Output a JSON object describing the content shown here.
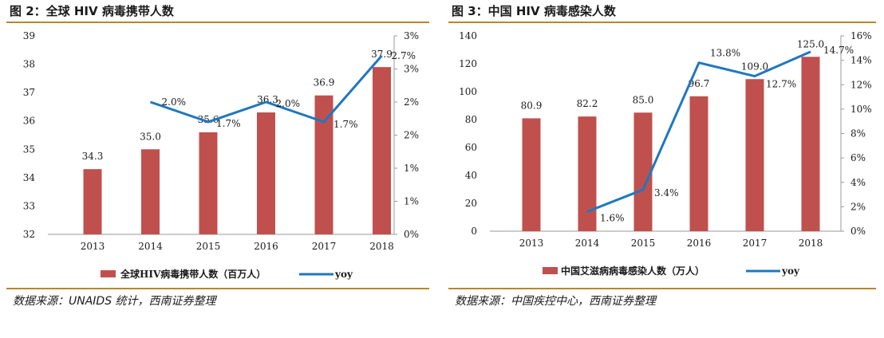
{
  "left_panel": {
    "title": "图 2：全球 HIV 病毒携带人数",
    "source": "数据来源：UNAIDS 统计，西南证券整理"
  },
  "right_panel": {
    "title": "图 3：中国 HIV 病毒感染人数",
    "source": "数据来源：中国疾控中心，西南证券整理"
  },
  "colors": {
    "bar": "#c0504d",
    "line": "#1f77c0",
    "rule": "#b8862e"
  },
  "chart_data": [
    {
      "type": "bar",
      "categories": [
        "2013",
        "2014",
        "2015",
        "2016",
        "2017",
        "2018"
      ],
      "series": [
        {
          "name": "全球HIV病毒携带人数（百万人）",
          "type": "bar",
          "axis": "left",
          "values": [
            34.3,
            35.0,
            35.6,
            36.3,
            36.9,
            37.9
          ],
          "labels": [
            "34.3",
            "35.0",
            "35.6",
            "36.3",
            "36.9",
            "37.9"
          ]
        },
        {
          "name": "yoy",
          "type": "line",
          "axis": "right",
          "values": [
            null,
            2.0,
            1.7,
            2.0,
            1.7,
            2.7
          ],
          "labels": [
            "",
            "2.0%",
            "1.7%",
            "2.0%",
            "1.7%",
            "2.7%"
          ]
        }
      ],
      "ylim_left": [
        32,
        39
      ],
      "yticks_left": [
        "32",
        "33",
        "34",
        "35",
        "36",
        "37",
        "38",
        "39"
      ],
      "ylim_right": [
        0,
        3
      ],
      "yticks_right": [
        "0%",
        "1%",
        "1%",
        "2%",
        "2%",
        "3%",
        "3%"
      ],
      "legend_position": "bottom"
    },
    {
      "type": "bar",
      "categories": [
        "2013",
        "2014",
        "2015",
        "2016",
        "2017",
        "2018"
      ],
      "series": [
        {
          "name": "中国艾滋病病毒感染人数（万人）",
          "type": "bar",
          "axis": "left",
          "values": [
            80.9,
            82.2,
            85.0,
            96.7,
            109.0,
            125.0
          ],
          "labels": [
            "80.9",
            "82.2",
            "85.0",
            "96.7",
            "109.0",
            "125.0"
          ]
        },
        {
          "name": "yoy",
          "type": "line",
          "axis": "right",
          "values": [
            null,
            1.6,
            3.4,
            13.8,
            12.7,
            14.7
          ],
          "labels": [
            "",
            "1.6%",
            "3.4%",
            "13.8%",
            "12.7%",
            "14.7%"
          ]
        }
      ],
      "ylim_left": [
        0,
        140
      ],
      "yticks_left": [
        "0",
        "20",
        "40",
        "60",
        "80",
        "100",
        "120",
        "140"
      ],
      "ylim_right": [
        0,
        16
      ],
      "yticks_right": [
        "0%",
        "2%",
        "4%",
        "6%",
        "8%",
        "10%",
        "12%",
        "14%",
        "16%"
      ],
      "legend_position": "bottom"
    }
  ]
}
